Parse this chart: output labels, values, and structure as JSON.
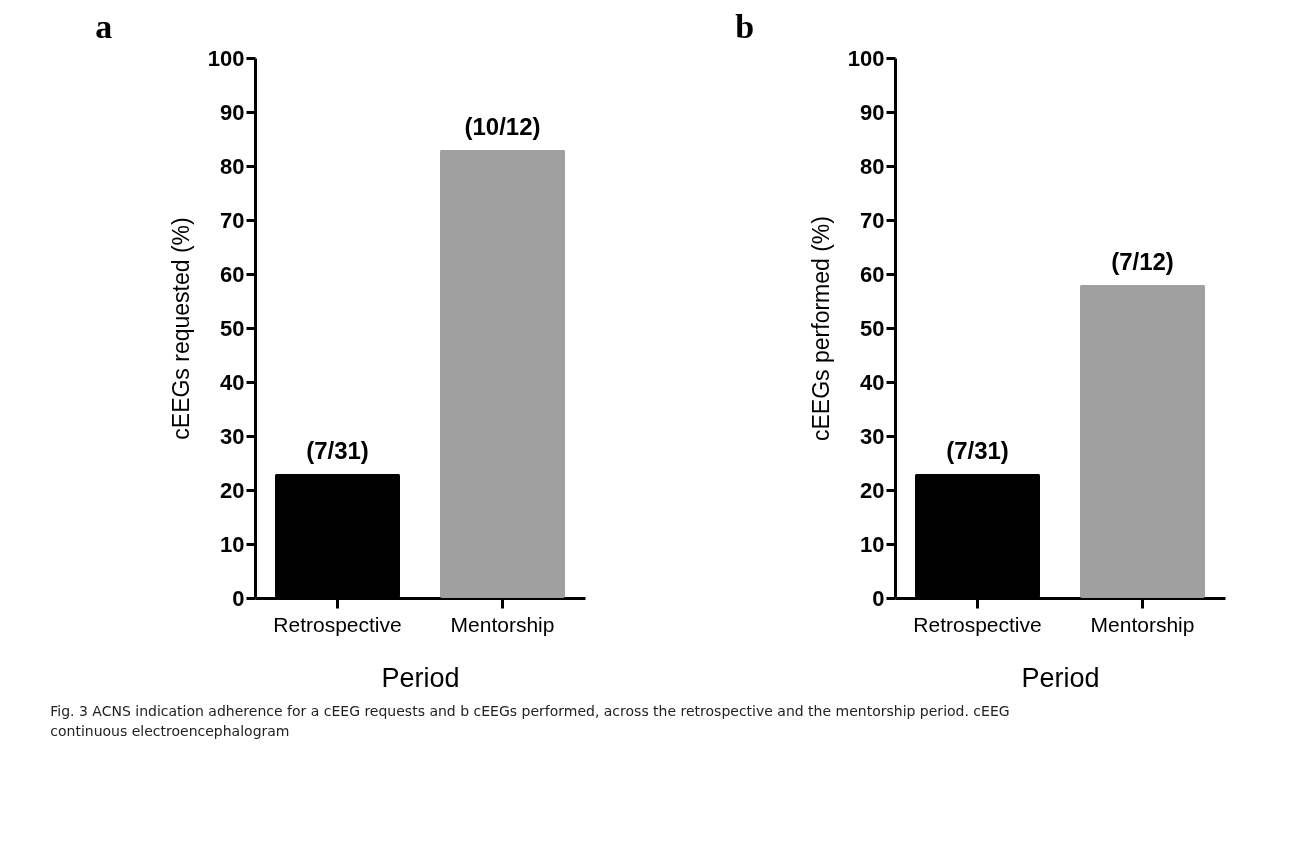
{
  "chart_data": [
    {
      "type": "bar",
      "title": "a",
      "categories": [
        "Retrospective",
        "Mentorship"
      ],
      "values": [
        23,
        83
      ],
      "colors": [
        "#000000",
        "#a0a0a0"
      ],
      "value_labels": [
        "(7/31)",
        "(10/12)"
      ],
      "xlabel": "Period",
      "ylabel": "cEEGs requested (%)",
      "ylim": [
        0,
        100
      ],
      "yticks": [
        0,
        10,
        20,
        30,
        40,
        50,
        60,
        70,
        80,
        90,
        100
      ],
      "annotations": [
        "Fig. 3 ACNS indication adherence for a cEEG requests and b cEEGs performed, across the retrospective and the mentorship period. cEEG continuous electroencephalogram"
      ]
    },
    {
      "type": "bar",
      "title": "b",
      "categories": [
        "Retrospective",
        "Mentorship"
      ],
      "values": [
        23,
        58
      ],
      "colors": [
        "#000000",
        "#a0a0a0"
      ],
      "value_labels": [
        "(7/31)",
        "(7/12)"
      ],
      "xlabel": "Period",
      "ylabel": "cEEGs performed (%)",
      "ylim": [
        0,
        100
      ],
      "yticks": [
        0,
        10,
        20,
        30,
        40,
        50,
        60,
        70,
        80,
        90,
        100
      ]
    }
  ]
}
